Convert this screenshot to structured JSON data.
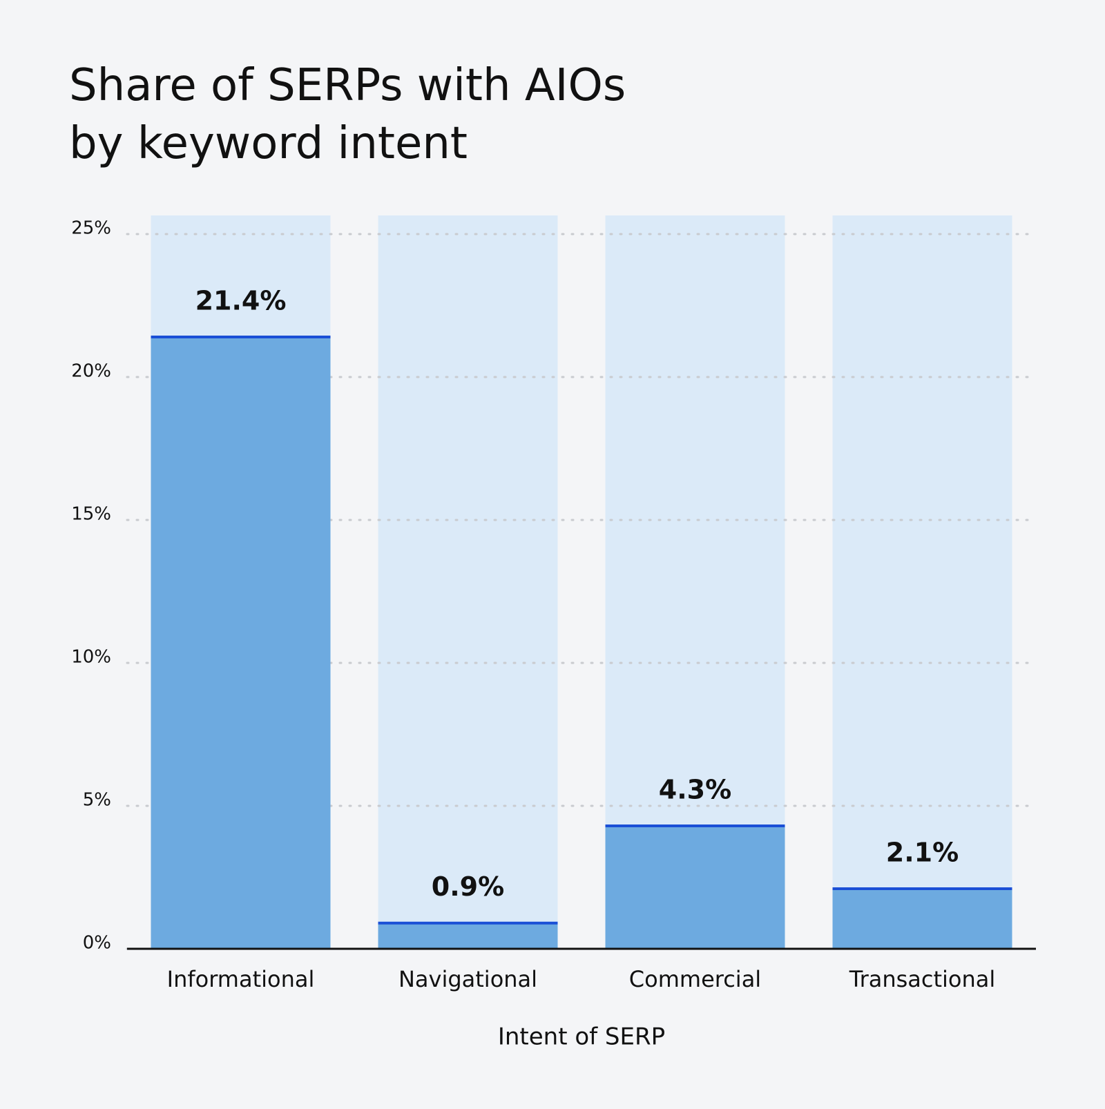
{
  "chart_data": {
    "type": "bar",
    "title": "Share of SERPs with AIOs by keyword intent",
    "x_label": "Intent of SERP",
    "categories": [
      "Informational",
      "Navigational",
      "Commercial",
      "Transactional"
    ],
    "values": [
      21.4,
      0.9,
      4.3,
      2.1
    ],
    "value_labels": [
      "21.4%",
      "0.9%",
      "4.3%",
      "2.1%"
    ],
    "color": "#6daae0",
    "ylim": [
      0,
      25
    ],
    "yticks": [
      {
        "value": 0,
        "label": "0%"
      },
      {
        "value": 5,
        "label": "5%"
      },
      {
        "value": 10,
        "label": "10%"
      },
      {
        "value": 15,
        "label": "15%"
      },
      {
        "value": 20,
        "label": "20%"
      },
      {
        "value": 25,
        "label": "25%"
      }
    ],
    "grid": true
  }
}
